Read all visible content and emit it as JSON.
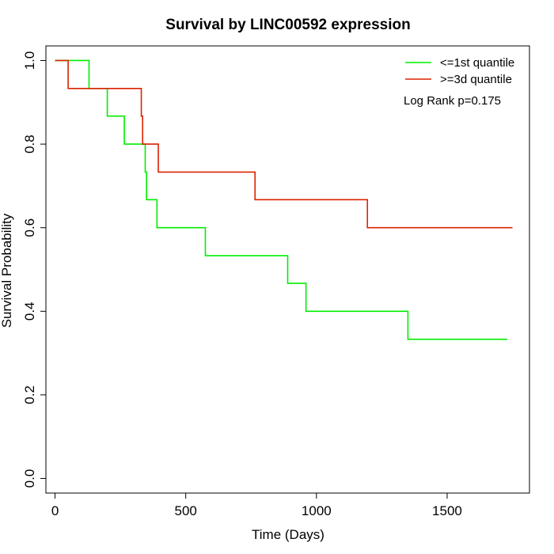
{
  "chart_data": {
    "type": "line",
    "title": "Survival by LINC00592 expression",
    "xlabel": "Time (Days)",
    "ylabel": "Survival Probability",
    "xlim": [
      -35,
      1815
    ],
    "ylim": [
      -0.035,
      1.035
    ],
    "xticks": [
      0,
      500,
      1000,
      1500
    ],
    "yticks": [
      0.0,
      0.2,
      0.4,
      0.6,
      0.8,
      1.0
    ],
    "xtick_labels": [
      "0",
      "500",
      "1000",
      "1500"
    ],
    "ytick_labels": [
      "0.0",
      "0.2",
      "0.4",
      "0.6",
      "0.8",
      "1.0"
    ],
    "grid": false,
    "legend_position": "top-right",
    "annotation": "Log Rank p=0.175",
    "series": [
      {
        "name": "<=1st quantile",
        "color": "#00ee00",
        "step_points": [
          [
            0,
            1.0
          ],
          [
            130,
            0.933
          ],
          [
            200,
            0.867
          ],
          [
            265,
            0.8
          ],
          [
            345,
            0.733
          ],
          [
            350,
            0.667
          ],
          [
            390,
            0.6
          ],
          [
            575,
            0.533
          ],
          [
            890,
            0.467
          ],
          [
            960,
            0.4
          ],
          [
            1350,
            0.333
          ],
          [
            1730,
            0.333
          ]
        ]
      },
      {
        "name": ">=3d quantile",
        "color": "#dd2200",
        "step_points": [
          [
            0,
            1.0
          ],
          [
            50,
            0.933
          ],
          [
            330,
            0.867
          ],
          [
            335,
            0.8
          ],
          [
            395,
            0.733
          ],
          [
            765,
            0.667
          ],
          [
            1195,
            0.6
          ],
          [
            1750,
            0.6
          ]
        ]
      }
    ]
  }
}
